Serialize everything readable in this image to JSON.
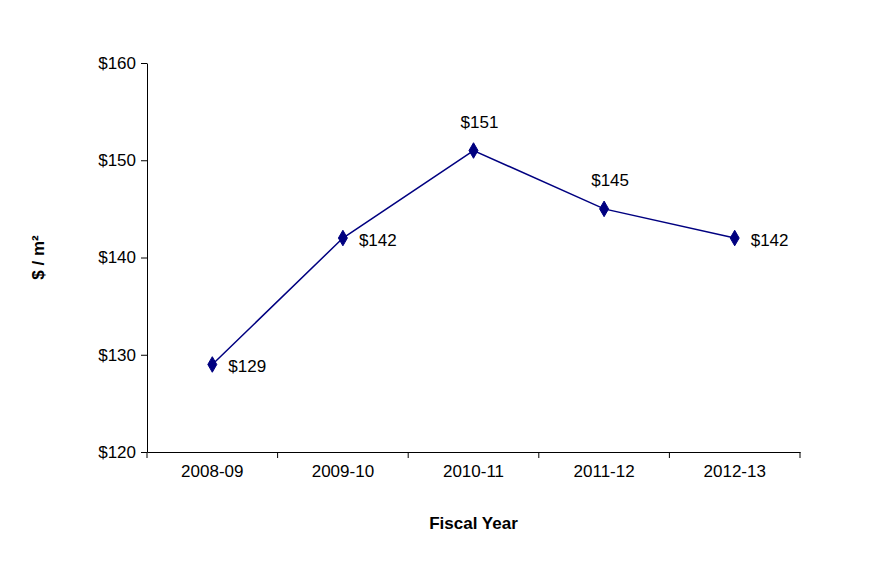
{
  "chart_data": {
    "type": "line",
    "x_label": "Fiscal Year",
    "y_label": "$ / m²",
    "categories": [
      "2008-09",
      "2009-10",
      "2010-11",
      "2011-12",
      "2012-13"
    ],
    "values": [
      129,
      142,
      151,
      145,
      142
    ],
    "value_labels": [
      "$129",
      "$142",
      "$151",
      "$145",
      "$142"
    ],
    "color": "#000080",
    "marker": "diamond",
    "ylim": [
      120,
      160
    ],
    "yticks": [
      {
        "value": 120,
        "label": "$120"
      },
      {
        "value": 130,
        "label": "$130"
      },
      {
        "value": 140,
        "label": "$140"
      },
      {
        "value": 150,
        "label": "$150"
      },
      {
        "value": 160,
        "label": "$160"
      }
    ],
    "grid": false,
    "data_labels": true
  }
}
